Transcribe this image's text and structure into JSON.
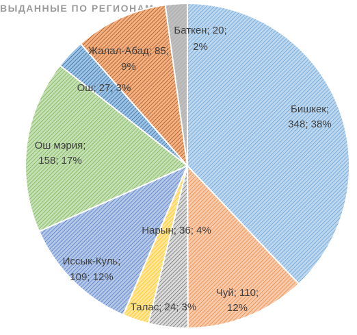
{
  "chart_data": {
    "type": "pie",
    "title": "ВЫДАННЫЕ ПО РЕГИОНАМ",
    "slices": [
      {
        "label": "Бишкек",
        "value": 348,
        "percent": "38%",
        "line1": "Бишкек;",
        "line2": "348; 38%",
        "color": "#5b9bd5"
      },
      {
        "label": "Чуй",
        "value": 110,
        "percent": "12%",
        "line1": "Чуй; 110;",
        "line2": "12%",
        "color": "#ed7d31"
      },
      {
        "label": "Баткен",
        "value": 20,
        "percent": "2%",
        "line1": "Баткен; 20;",
        "line2": "2%",
        "color": "#a5a5a5"
      },
      {
        "label": "Талас",
        "value": 24,
        "percent": "3%",
        "line1": "Талас; 24; 3%",
        "line2": "",
        "color": "#ffc000"
      },
      {
        "label": "Иссык-Куль",
        "value": 109,
        "percent": "12%",
        "line1": "Иссык-Куль;",
        "line2": "109; 12%",
        "color": "#4472c4"
      },
      {
        "label": "Ош мэрия",
        "value": 158,
        "percent": "17%",
        "line1": "Ош мэрия;",
        "line2": "158; 17%",
        "color": "#70ad47"
      },
      {
        "label": "Ош",
        "value": 27,
        "percent": "3%",
        "line1": "Ош; 27; 3%",
        "line2": "",
        "color": "#255e91"
      },
      {
        "label": "Жалал-Абад",
        "value": 85,
        "percent": "9%",
        "line1": "Жалал-Абад; 85;",
        "line2": "9%",
        "color": "#9e480e"
      },
      {
        "label": "Нарын",
        "value": 36,
        "percent": "4%",
        "line1": "Нарын; 36; 4%",
        "line2": "",
        "color": "#636363"
      }
    ]
  }
}
